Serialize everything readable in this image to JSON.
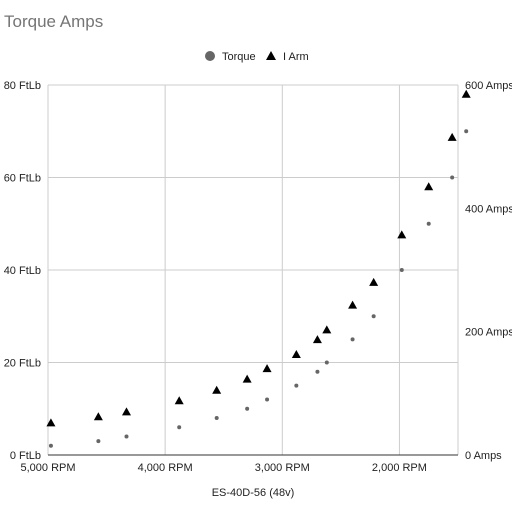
{
  "chart_data": {
    "type": "scatter",
    "title": "Torque Amps",
    "xlabel": "ES-40D-56 (48v)",
    "x_reversed": true,
    "xlim": [
      1500,
      5000
    ],
    "x_ticks": [
      5000,
      4000,
      3000,
      2000
    ],
    "x_tick_labels": [
      "5,000 RPM",
      "4,000 RPM",
      "3,000 RPM",
      "2,000 RPM"
    ],
    "y_left": {
      "lim": [
        0,
        80
      ],
      "ticks": [
        0,
        20,
        40,
        60,
        80
      ],
      "tick_labels": [
        "0 FtLb",
        "20 FtLb",
        "40 FtLb",
        "60 FtLb",
        "80 FtLb"
      ]
    },
    "y_right": {
      "lim": [
        0,
        600
      ],
      "ticks": [
        0,
        200,
        400,
        600
      ],
      "tick_labels": [
        "0 Amps",
        "200 Amps",
        "400 Amps",
        "600 Amps"
      ]
    },
    "legend_position": "top",
    "grid": true,
    "series": [
      {
        "name": "Torque",
        "axis": "left",
        "marker": "circle",
        "color": "#666666",
        "x": [
          4975,
          4570,
          4330,
          3880,
          3560,
          3300,
          3130,
          2880,
          2700,
          2620,
          2400,
          2220,
          1980,
          1750,
          1550,
          1430
        ],
        "y": [
          2,
          3,
          4,
          6,
          8,
          10,
          12,
          15,
          18,
          20,
          25,
          30,
          40,
          50,
          60,
          70
        ]
      },
      {
        "name": "I Arm",
        "axis": "right",
        "marker": "triangle",
        "color": "#000000",
        "x": [
          4975,
          4570,
          4330,
          3880,
          3560,
          3300,
          3130,
          2880,
          2700,
          2620,
          2400,
          2220,
          1980,
          1750,
          1550,
          1430
        ],
        "y": [
          52,
          62,
          70,
          88,
          105,
          123,
          140,
          163,
          187,
          203,
          243,
          280,
          357,
          435,
          515,
          585
        ]
      }
    ]
  }
}
